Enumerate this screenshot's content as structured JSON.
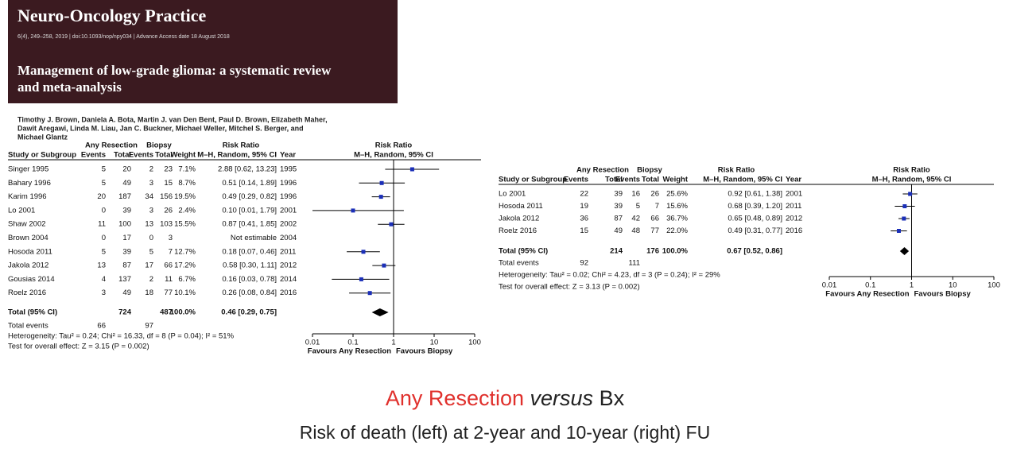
{
  "header": {
    "journal": "Neuro-Oncology Practice",
    "citation": "6(4), 249–258, 2019 | doi:10.1093/nop/npy034 | Advance Access date 18 August 2018",
    "title_lines": [
      "Management of low-grade glioma: a systematic review",
      "and meta-analysis"
    ]
  },
  "authors": [
    "Timothy J. Brown, Daniela A. Bota, Martin J. van Den Bent, Paul D. Brown, Elizabeth Maher,",
    "Dawit Aregawi, Linda M. Liau, Jan C. Buckner, Michael Weller, Mitchel S. Berger, and",
    "Michael Glantz"
  ],
  "plots": [
    {
      "group_headers": [
        "Any Resection",
        "Biopsy",
        "Risk Ratio",
        "Risk Ratio"
      ],
      "columns": [
        "Study or Subgroup",
        "Events",
        "Total",
        "Events",
        "Total",
        "Weight",
        "M–H, Random, 95% CI",
        "Year",
        "M–H, Random, 95% CI"
      ],
      "studies": [
        {
          "study": "Singer 1995",
          "events_a": 5,
          "total_a": 20,
          "events_b": 2,
          "total_b": 23,
          "weight": "7.1%",
          "rr_label": "2.88 [0.62, 13.23]",
          "rr": 2.88,
          "ci": [
            0.62,
            13.23
          ],
          "year": 1995
        },
        {
          "study": "Bahary 1996",
          "events_a": 5,
          "total_a": 49,
          "events_b": 3,
          "total_b": 15,
          "weight": "8.7%",
          "rr_label": "0.51 [0.14, 1.89]",
          "rr": 0.51,
          "ci": [
            0.14,
            1.89
          ],
          "year": 1996
        },
        {
          "study": "Karim 1996",
          "events_a": 20,
          "total_a": 187,
          "events_b": 34,
          "total_b": 156,
          "weight": "19.5%",
          "rr_label": "0.49 [0.29, 0.82]",
          "rr": 0.49,
          "ci": [
            0.29,
            0.82
          ],
          "year": 1996
        },
        {
          "study": "Lo 2001",
          "events_a": 0,
          "total_a": 39,
          "events_b": 3,
          "total_b": 26,
          "weight": "2.4%",
          "rr_label": "0.10 [0.01, 1.79]",
          "rr": 0.1,
          "ci": [
            0.01,
            1.79
          ],
          "year": 2001
        },
        {
          "study": "Shaw 2002",
          "events_a": 11,
          "total_a": 100,
          "events_b": 13,
          "total_b": 103,
          "weight": "15.5%",
          "rr_label": "0.87 [0.41, 1.85]",
          "rr": 0.87,
          "ci": [
            0.41,
            1.85
          ],
          "year": 2002
        },
        {
          "study": "Brown 2004",
          "events_a": 0,
          "total_a": 17,
          "events_b": 0,
          "total_b": 3,
          "rr_label": "Not estimable",
          "year": 2004
        },
        {
          "study": "Hosoda 2011",
          "events_a": 5,
          "total_a": 39,
          "events_b": 5,
          "total_b": 7,
          "weight": "12.7%",
          "rr_label": "0.18 [0.07, 0.46]",
          "rr": 0.18,
          "ci": [
            0.07,
            0.46
          ],
          "year": 2011
        },
        {
          "study": "Jakola 2012",
          "events_a": 13,
          "total_a": 87,
          "events_b": 17,
          "total_b": 66,
          "weight": "17.2%",
          "rr_label": "0.58 [0.30, 1.11]",
          "rr": 0.58,
          "ci": [
            0.3,
            1.11
          ],
          "year": 2012
        },
        {
          "study": "Gousias 2014",
          "events_a": 4,
          "total_a": 137,
          "events_b": 2,
          "total_b": 11,
          "weight": "6.7%",
          "rr_label": "0.16 [0.03, 0.78]",
          "rr": 0.16,
          "ci": [
            0.03,
            0.78
          ],
          "year": 2014
        },
        {
          "study": "Roelz 2016",
          "events_a": 3,
          "total_a": 49,
          "events_b": 18,
          "total_b": 77,
          "weight": "10.1%",
          "rr_label": "0.26 [0.08, 0.84]",
          "rr": 0.26,
          "ci": [
            0.08,
            0.84
          ],
          "year": 2016
        }
      ],
      "total": {
        "study": "Total (95% CI)",
        "total_a": 724,
        "total_b": 487,
        "weight": "100.0%",
        "rr_label": "0.46 [0.29, 0.75]",
        "rr": 0.46,
        "ci": [
          0.29,
          0.75
        ]
      },
      "total_events": {
        "label": "Total events",
        "events_a": 66,
        "events_b": 97
      },
      "heterogeneity": "Heterogeneity: Tau² = 0.24; Chi² = 16.33, df = 8 (P = 0.04); I² = 51%",
      "overall_effect": "Test for overall effect: Z = 3.15 (P = 0.002)",
      "axis": {
        "xlim": [
          0.01,
          100
        ],
        "xticks": [
          0.01,
          0.1,
          1,
          10,
          100
        ],
        "log": true,
        "favours_left": "Favours Any Resection",
        "favours_right": "Favours Biopsy"
      }
    },
    {
      "group_headers": [
        "Any Resection",
        "Biopsy",
        "Risk Ratio",
        "Risk Ratio"
      ],
      "columns": [
        "Study or Subgroup",
        "Events",
        "Total",
        "Events",
        "Total",
        "Weight",
        "M–H, Random, 95% CI",
        "Year",
        "M–H, Random, 95% CI"
      ],
      "studies": [
        {
          "study": "Lo 2001",
          "events_a": 22,
          "total_a": 39,
          "events_b": 16,
          "total_b": 26,
          "weight": "25.6%",
          "rr_label": "0.92 [0.61, 1.38]",
          "rr": 0.92,
          "ci": [
            0.61,
            1.38
          ],
          "year": 2001
        },
        {
          "study": "Hosoda 2011",
          "events_a": 19,
          "total_a": 39,
          "events_b": 5,
          "total_b": 7,
          "weight": "15.6%",
          "rr_label": "0.68 [0.39, 1.20]",
          "rr": 0.68,
          "ci": [
            0.39,
            1.2
          ],
          "year": 2011
        },
        {
          "study": "Jakola 2012",
          "events_a": 36,
          "total_a": 87,
          "events_b": 42,
          "total_b": 66,
          "weight": "36.7%",
          "rr_label": "0.65 [0.48, 0.89]",
          "rr": 0.65,
          "ci": [
            0.48,
            0.89
          ],
          "year": 2012
        },
        {
          "study": "Roelz 2016",
          "events_a": 15,
          "total_a": 49,
          "events_b": 48,
          "total_b": 77,
          "weight": "22.0%",
          "rr_label": "0.49 [0.31, 0.77]",
          "rr": 0.49,
          "ci": [
            0.31,
            0.77
          ],
          "year": 2016
        }
      ],
      "total": {
        "study": "Total (95% CI)",
        "total_a": 214,
        "total_b": 176,
        "weight": "100.0%",
        "rr_label": "0.67 [0.52, 0.86]",
        "rr": 0.67,
        "ci": [
          0.52,
          0.86
        ]
      },
      "total_events": {
        "label": "Total events",
        "events_a": 92,
        "events_b": 111
      },
      "heterogeneity": "Heterogeneity: Tau² = 0.02; Chi² = 4.23, df = 3 (P = 0.24); I² = 29%",
      "overall_effect": "Test for overall effect: Z = 3.13 (P = 0.002)",
      "axis": {
        "xlim": [
          0.01,
          100
        ],
        "xticks": [
          0.01,
          0.1,
          1,
          10,
          100
        ],
        "log": true,
        "favours_left": "Favours Any Resection",
        "favours_right": "Favours Biopsy"
      }
    }
  ],
  "caption": {
    "highlight": "Any Resection",
    "italic": "versus",
    "rest": "Bx",
    "subtitle": "Risk of death (left) at 2-year and 10-year (right) FU"
  }
}
